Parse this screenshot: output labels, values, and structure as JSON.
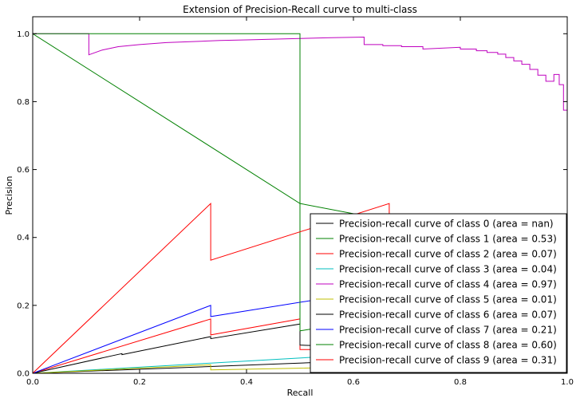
{
  "chart_data": {
    "type": "line",
    "title": "Extension of Precision-Recall curve to multi-class",
    "xlabel": "Recall",
    "ylabel": "Precision",
    "xlim": [
      0.0,
      1.0
    ],
    "ylim": [
      0.0,
      1.05
    ],
    "x_ticks": [
      "0.0",
      "0.2",
      "0.4",
      "0.6",
      "0.8",
      "1.0"
    ],
    "y_ticks": [
      "0.0",
      "0.2",
      "0.4",
      "0.6",
      "0.8",
      "1.0"
    ],
    "grid": false,
    "legend_position": "lower-right",
    "series": [
      {
        "name": "Precision-recall curve of class 0 (area = nan)",
        "color": "#000000",
        "points": [
          [
            0.0,
            0.0
          ],
          [
            1.0,
            0.06
          ]
        ]
      },
      {
        "name": "Precision-recall curve of class 1 (area = 0.53)",
        "color": "#008000",
        "points": [
          [
            0.0,
            1.0
          ],
          [
            0.5,
            0.5
          ],
          [
            1.0,
            0.35
          ]
        ]
      },
      {
        "name": "Precision-recall curve of class 2 (area = 0.07)",
        "color": "#ff0000",
        "points": [
          [
            0.0,
            0.0
          ],
          [
            0.333,
            0.16
          ],
          [
            0.333,
            0.113
          ],
          [
            0.5,
            0.16
          ],
          [
            0.5,
            0.07
          ],
          [
            1.0,
            0.07
          ]
        ]
      },
      {
        "name": "Precision-recall curve of class 3 (area = 0.04)",
        "color": "#00bfbf",
        "points": [
          [
            0.0,
            0.0
          ],
          [
            0.333,
            0.03
          ],
          [
            1.0,
            0.09
          ]
        ]
      },
      {
        "name": "Precision-recall curve of class 4 (area = 0.97)",
        "color": "#bf00bf",
        "points": [
          [
            0.0,
            1.0
          ],
          [
            0.105,
            1.0
          ],
          [
            0.105,
            0.938
          ],
          [
            0.13,
            0.952
          ],
          [
            0.16,
            0.962
          ],
          [
            0.2,
            0.968
          ],
          [
            0.25,
            0.974
          ],
          [
            0.3,
            0.977
          ],
          [
            0.35,
            0.98
          ],
          [
            0.4,
            0.982
          ],
          [
            0.45,
            0.984
          ],
          [
            0.5,
            0.986
          ],
          [
            0.55,
            0.988
          ],
          [
            0.62,
            0.99
          ],
          [
            0.62,
            0.968
          ],
          [
            0.655,
            0.968
          ],
          [
            0.655,
            0.965
          ],
          [
            0.69,
            0.965
          ],
          [
            0.69,
            0.962
          ],
          [
            0.73,
            0.962
          ],
          [
            0.73,
            0.955
          ],
          [
            0.8,
            0.96
          ],
          [
            0.8,
            0.955
          ],
          [
            0.83,
            0.955
          ],
          [
            0.83,
            0.95
          ],
          [
            0.85,
            0.95
          ],
          [
            0.85,
            0.945
          ],
          [
            0.87,
            0.945
          ],
          [
            0.87,
            0.94
          ],
          [
            0.885,
            0.94
          ],
          [
            0.885,
            0.93
          ],
          [
            0.9,
            0.93
          ],
          [
            0.9,
            0.92
          ],
          [
            0.915,
            0.92
          ],
          [
            0.915,
            0.91
          ],
          [
            0.93,
            0.91
          ],
          [
            0.93,
            0.895
          ],
          [
            0.945,
            0.895
          ],
          [
            0.945,
            0.878
          ],
          [
            0.96,
            0.878
          ],
          [
            0.96,
            0.86
          ],
          [
            0.975,
            0.86
          ],
          [
            0.975,
            0.88
          ],
          [
            0.985,
            0.88
          ],
          [
            0.985,
            0.85
          ],
          [
            0.993,
            0.85
          ],
          [
            0.993,
            0.775
          ],
          [
            1.0,
            0.775
          ]
        ]
      },
      {
        "name": "Precision-recall curve of class 5 (area = 0.01)",
        "color": "#bfbf00",
        "points": [
          [
            0.0,
            0.0
          ],
          [
            0.333,
            0.025
          ],
          [
            0.333,
            0.01
          ],
          [
            1.0,
            0.03
          ]
        ]
      },
      {
        "name": "Precision-recall curve of class 6 (area = 0.07)",
        "color": "#000000",
        "points": [
          [
            0.0,
            0.0
          ],
          [
            0.167,
            0.058
          ],
          [
            0.167,
            0.055
          ],
          [
            0.333,
            0.108
          ],
          [
            0.333,
            0.102
          ],
          [
            0.5,
            0.145
          ],
          [
            0.5,
            0.083
          ],
          [
            1.0,
            0.06
          ]
        ]
      },
      {
        "name": "Precision-recall curve of class 7 (area = 0.21)",
        "color": "#0000ff",
        "points": [
          [
            0.0,
            0.0
          ],
          [
            0.333,
            0.2
          ],
          [
            0.333,
            0.167
          ],
          [
            1.0,
            0.335
          ]
        ]
      },
      {
        "name": "Precision-recall curve of class 8 (area = 0.60)",
        "color": "#008000",
        "points": [
          [
            0.0,
            1.0
          ],
          [
            0.5,
            1.0
          ],
          [
            0.5,
            0.125
          ],
          [
            1.0,
            0.25
          ]
        ]
      },
      {
        "name": "Precision-recall curve of class 9 (area = 0.31)",
        "color": "#ff0000",
        "points": [
          [
            0.0,
            0.0
          ],
          [
            0.333,
            0.5
          ],
          [
            0.333,
            0.333
          ],
          [
            0.667,
            0.5
          ],
          [
            0.667,
            0.25
          ],
          [
            1.0,
            0.3
          ]
        ]
      }
    ]
  }
}
